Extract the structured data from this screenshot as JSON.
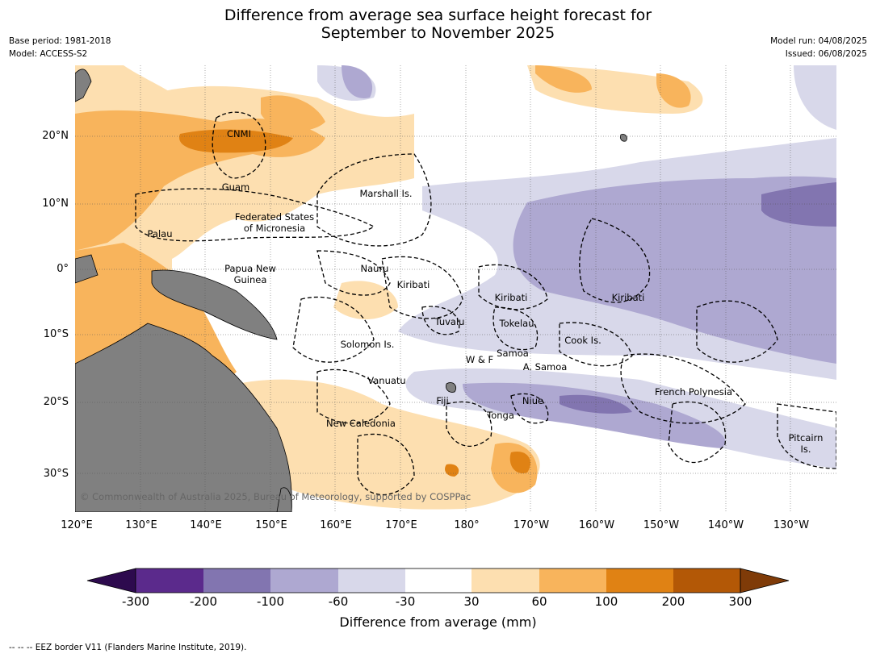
{
  "header": {
    "title_line1": "Difference from average sea surface height forecast for",
    "title_line2": "September to November 2025",
    "base_period": "Base period: 1981-2018",
    "model": "Model: ACCESS-S2",
    "model_run": "Model run: 04/08/2025",
    "issued": "Issued: 06/08/2025"
  },
  "axes": {
    "lat_labels": [
      "20°N",
      "10°N",
      "0°",
      "10°S",
      "20°S",
      "30°S"
    ],
    "lon_labels": [
      "120°E",
      "130°E",
      "140°E",
      "150°E",
      "160°E",
      "170°E",
      "180°",
      "170°W",
      "160°W",
      "150°W",
      "140°W",
      "130°W"
    ]
  },
  "places": [
    "CNMI",
    "Guam",
    "Marshall Is.",
    "Federated States",
    "of Micronesia",
    "Palau",
    "Papua New",
    "Guinea",
    "Nauru",
    "Kiribati",
    "Kiribati",
    "Kiribati",
    "Tuvalu",
    "Tokelau",
    "Cook Is.",
    "Solomon Is.",
    "Samoa",
    "W & F",
    "A. Samoa",
    "Vanuatu",
    "Fiji",
    "Niue",
    "Tonga",
    "French Polynesia",
    "New Caledonia",
    "Pitcairn",
    "Is."
  ],
  "copyright": "© Commonwealth of Australia 2025, Bureau of Meteorology, supported by COSPPac",
  "colorbar": {
    "title": "Difference from average (mm)",
    "ticks": [
      "-300",
      "-200",
      "-100",
      "-60",
      "-30",
      "30",
      "60",
      "100",
      "200",
      "300"
    ],
    "colors": {
      "lt_neg300": "#2d0a4e",
      "neg300_neg200": "#5b2a8c",
      "neg200_neg100": "#8275b0",
      "neg100_neg60": "#aea8d1",
      "neg60_neg30": "#d8d8ea",
      "neg30_30": "#ffffff",
      "p30_60": "#fddfb0",
      "p60_100": "#f8b45c",
      "p100_200": "#e08214",
      "p200_300": "#b35806",
      "gt300": "#7f3b08"
    }
  },
  "land_color": "#808080",
  "footnote": "--  --  -- EEZ border V11 (Flanders Marine Institute, 2019)."
}
